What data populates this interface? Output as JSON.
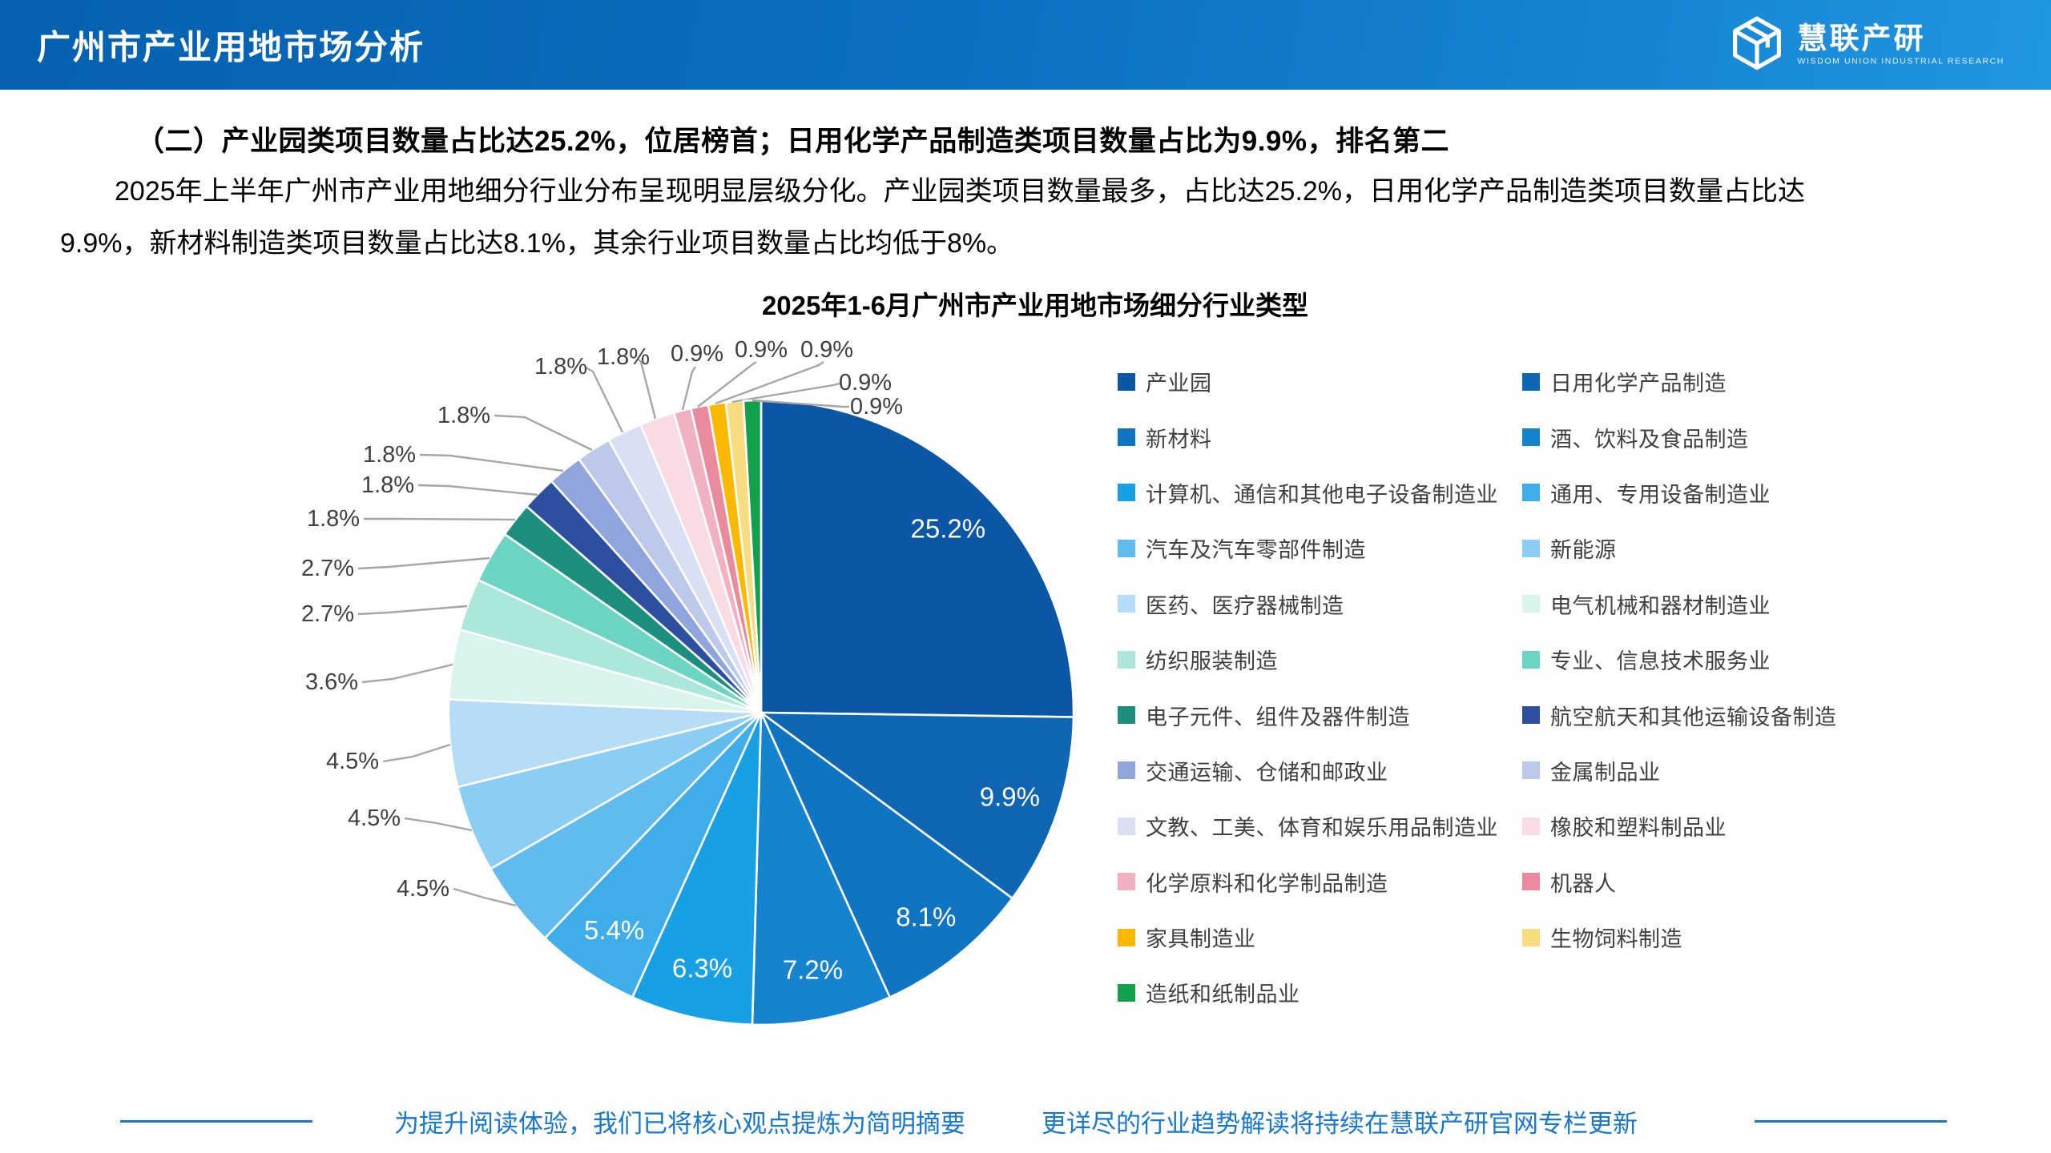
{
  "header": {
    "title": "广州市产业用地市场分析",
    "logo_text": "慧联产研",
    "logo_subtext": "WISDOM UNION INDUSTRIAL RESEARCH"
  },
  "heading": "（二）产业园类项目数量占比达25.2%，位居榜首；日用化学产品制造类项目数量占比为9.9%，排名第二",
  "paragraph": {
    "line1": "2025年上半年广州市产业用地细分行业分布呈现明显层级分化。产业园类项目数量最多，占比达25.2%，日用化学产品制造类项目数量占比达",
    "line2": "9.9%，新材料制造类项目数量占比达8.1%，其余行业项目数量占比均低于8%。"
  },
  "chart_data": {
    "type": "pie",
    "title": "2025年1-6月广州市产业用地市场细分行业类型",
    "start_angle": "12-oclock",
    "direction": "clockwise",
    "label_format": "percent",
    "legend_position": "right, two columns, row-major order",
    "series": [
      {
        "label": "产业园",
        "value": 25.2,
        "color": "#0C57A5"
      },
      {
        "label": "日用化学产品制造",
        "value": 9.9,
        "color": "#0F66B2"
      },
      {
        "label": "新材料",
        "value": 8.1,
        "color": "#0F74C1"
      },
      {
        "label": "酒、饮料及食品制造",
        "value": 7.2,
        "color": "#1583CE"
      },
      {
        "label": "计算机、通信和其他电子设备制造业",
        "value": 6.3,
        "color": "#18A0E5"
      },
      {
        "label": "通用、专用设备制造业",
        "value": 5.4,
        "color": "#3FADE9"
      },
      {
        "label": "汽车及汽车零部件制造",
        "value": 4.5,
        "color": "#60BCEE"
      },
      {
        "label": "新能源",
        "value": 4.5,
        "color": "#8CCEF3"
      },
      {
        "label": "医药、医疗器械制造",
        "value": 4.5,
        "color": "#B5DDF7"
      },
      {
        "label": "电气机械和器材制造业",
        "value": 3.6,
        "color": "#D9F3ED"
      },
      {
        "label": "纺织服装制造",
        "value": 2.7,
        "color": "#ACE7DC"
      },
      {
        "label": "专业、信息技术服务业",
        "value": 2.7,
        "color": "#6BD4C3"
      },
      {
        "label": "电子元件、组件及器件制造",
        "value": 1.8,
        "color": "#1C8F7E"
      },
      {
        "label": "航空航天和其他运输设备制造",
        "value": 1.8,
        "color": "#2C509F"
      },
      {
        "label": "交通运输、仓储和邮政业",
        "value": 1.8,
        "color": "#8FA5DB"
      },
      {
        "label": "金属制品业",
        "value": 1.8,
        "color": "#BDC9EB"
      },
      {
        "label": "文教、工美、体育和娱乐用品制造业",
        "value": 1.8,
        "color": "#DAE0F4"
      },
      {
        "label": "橡胶和塑料制品业",
        "value": 1.8,
        "color": "#F8DBE3"
      },
      {
        "label": "化学原料和化学制品制造",
        "value": 0.9,
        "color": "#F2B1C1"
      },
      {
        "label": "机器人",
        "value": 0.9,
        "color": "#E98B9D"
      },
      {
        "label": "家具制造业",
        "value": 0.9,
        "color": "#FDB900"
      },
      {
        "label": "生物饲料制造",
        "value": 0.9,
        "color": "#F8DC80"
      },
      {
        "label": "造纸和纸制品业",
        "value": 0.9,
        "color": "#12A14B"
      }
    ]
  },
  "footer": {
    "note_left": "为提升阅读体验，我们已将核心观点提炼为简明摘要",
    "note_right": "更详尽的行业趋势解读将持续在慧联产研官网专栏更新"
  }
}
